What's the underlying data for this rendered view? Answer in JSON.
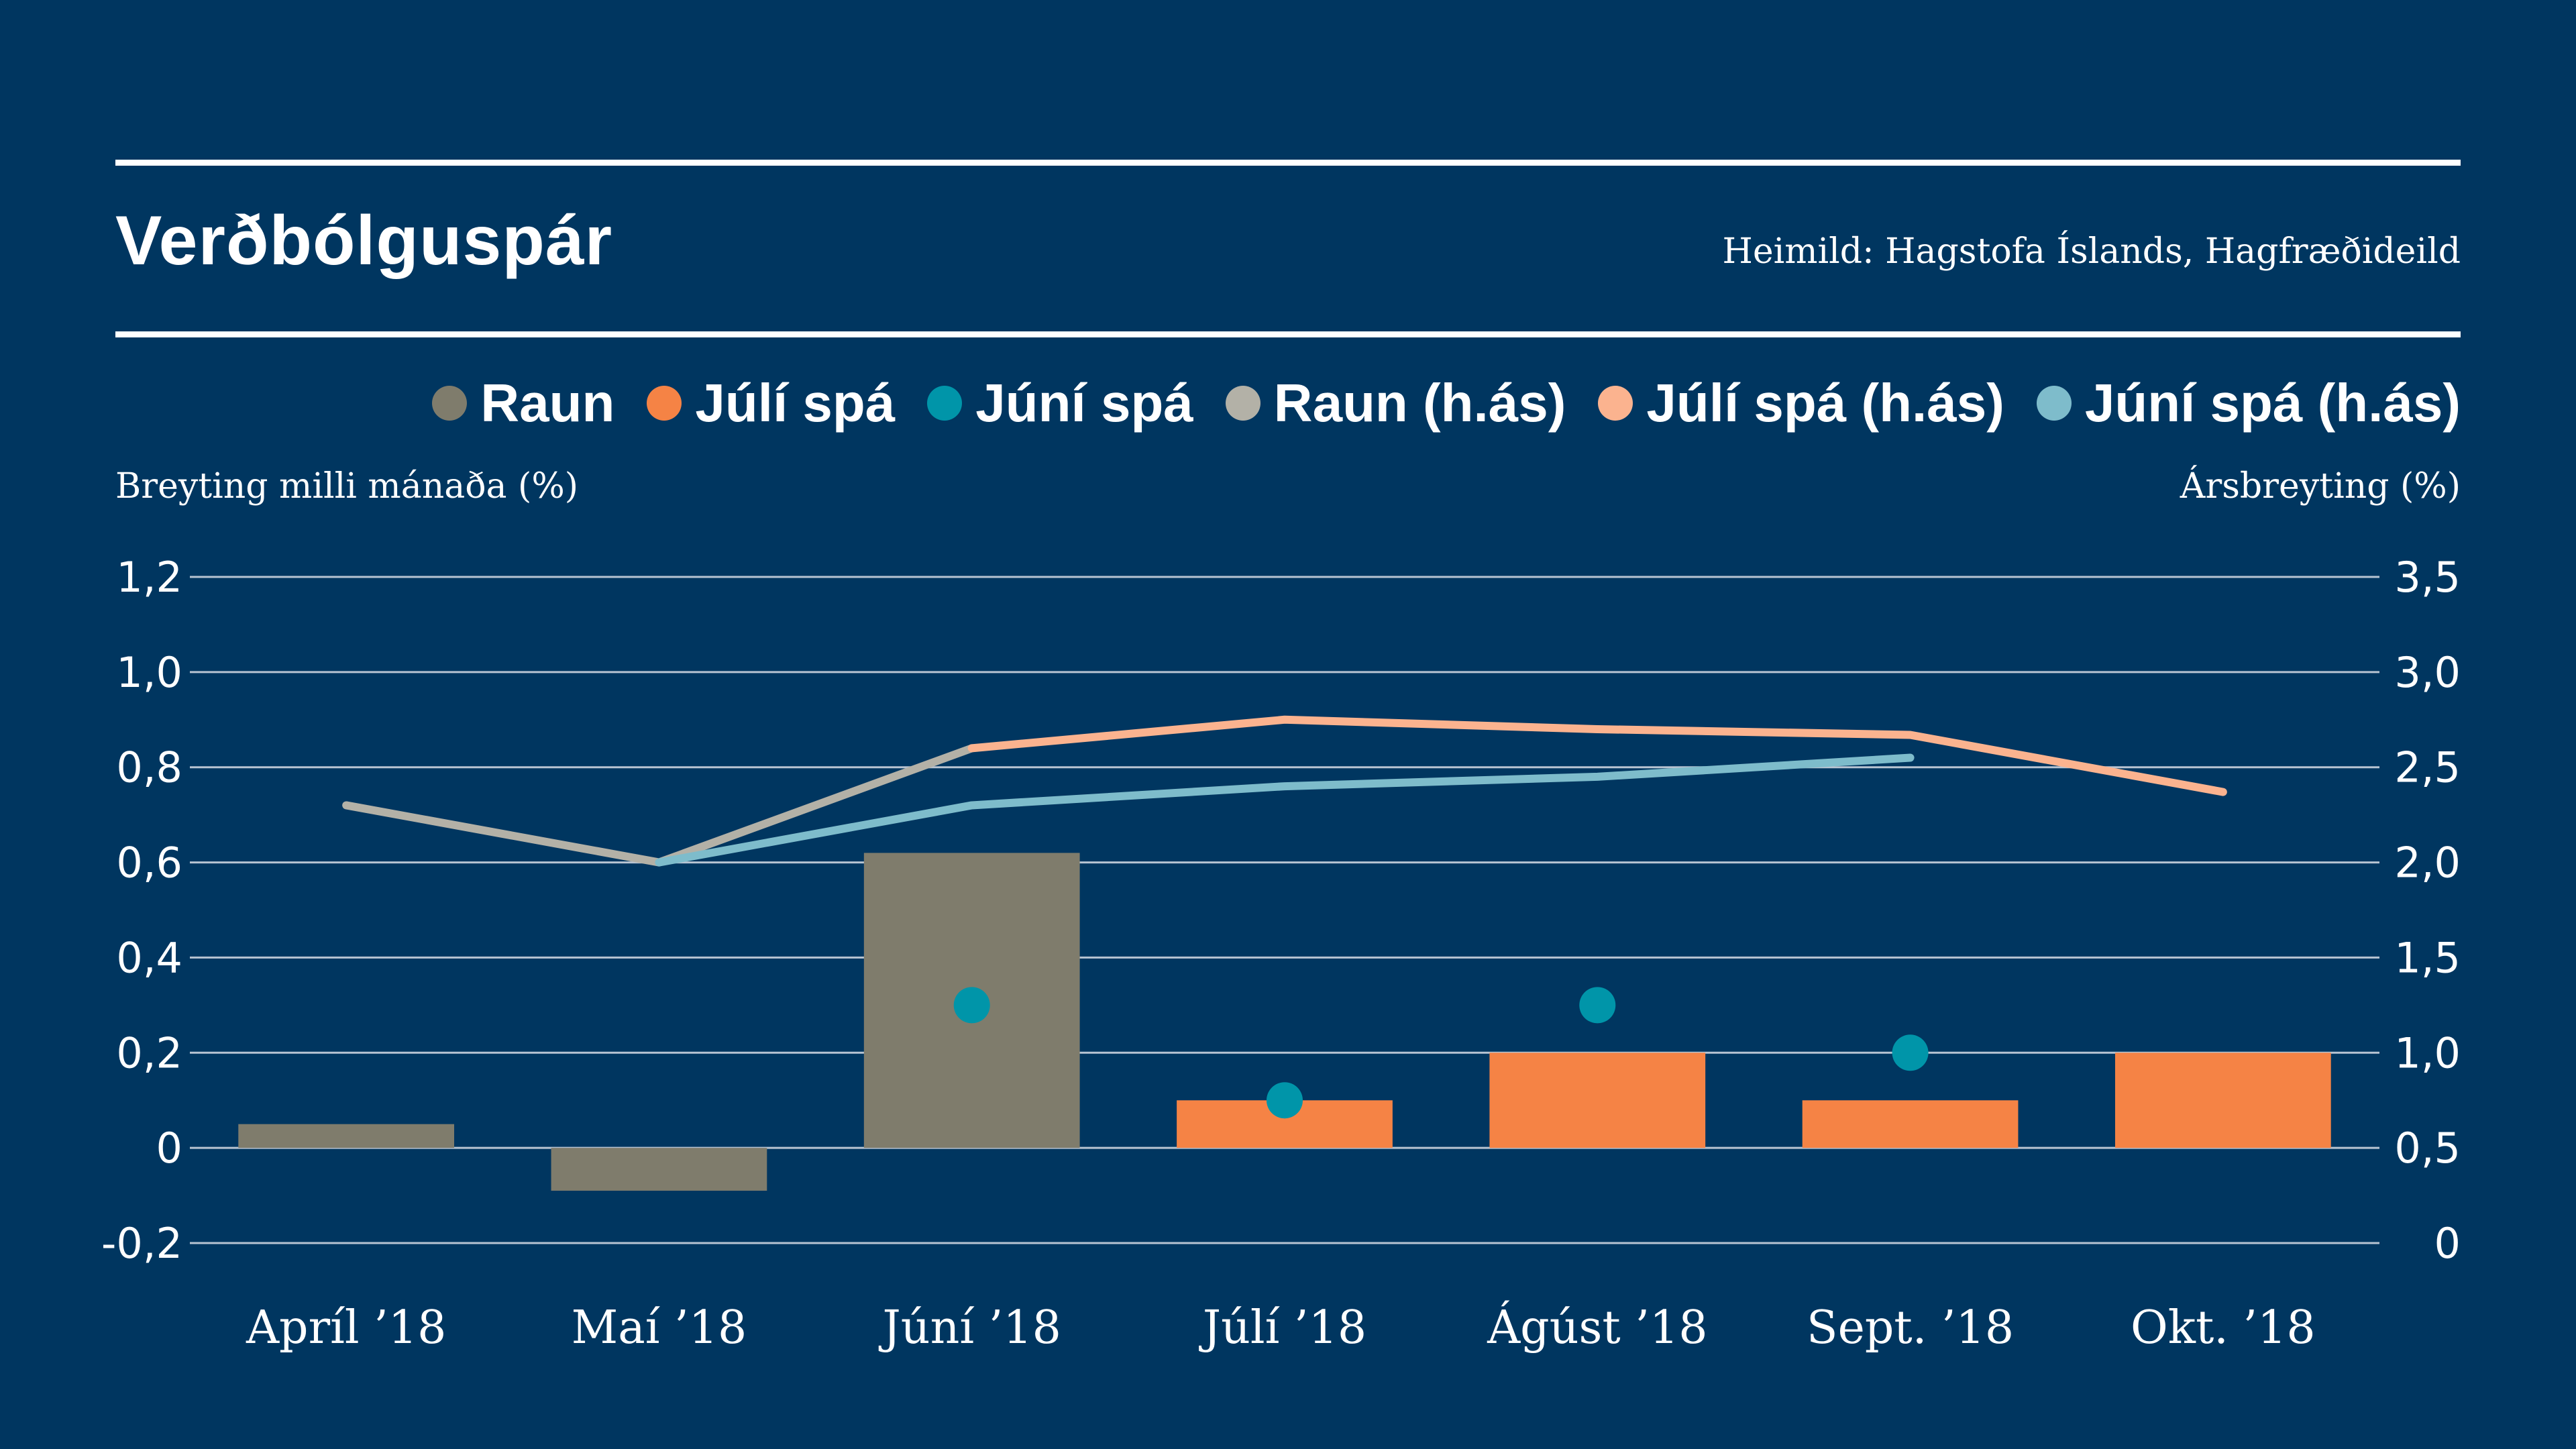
{
  "header": {
    "title": "Verðbólguspár",
    "source": "Heimild: Hagstofa Íslands, Hagfræðideild"
  },
  "legend": [
    {
      "label": "Raun",
      "color": "#7f7c6c"
    },
    {
      "label": "Júlí spá",
      "color": "#f58345"
    },
    {
      "label": "Júní spá",
      "color": "#0095a9"
    },
    {
      "label": "Raun (h.ás)",
      "color": "#b3b1a7"
    },
    {
      "label": "Júlí spá (h.ás)",
      "color": "#fbb38f"
    },
    {
      "label": "Júní spá (h.ás)",
      "color": "#7ebccb"
    }
  ],
  "axes": {
    "left_title": "Breyting milli mánaða (%)",
    "right_title": "Ársbreyting (%)",
    "left_ticks": [
      {
        "value": 1.2,
        "label": "1,2"
      },
      {
        "value": 1.0,
        "label": "1,0"
      },
      {
        "value": 0.8,
        "label": "0,8"
      },
      {
        "value": 0.6,
        "label": "0,6"
      },
      {
        "value": 0.4,
        "label": "0,4"
      },
      {
        "value": 0.2,
        "label": "0,2"
      },
      {
        "value": 0,
        "label": "0"
      },
      {
        "value": -0.2,
        "label": "-0,2"
      }
    ],
    "right_ticks": [
      {
        "value": 3.5,
        "label": "3,5"
      },
      {
        "value": 3.0,
        "label": "3,0"
      },
      {
        "value": 2.5,
        "label": "2,5"
      },
      {
        "value": 2.0,
        "label": "2,0"
      },
      {
        "value": 1.5,
        "label": "1,5"
      },
      {
        "value": 1.0,
        "label": "1,0"
      },
      {
        "value": 0.5,
        "label": "0,5"
      },
      {
        "value": 0,
        "label": "0"
      }
    ]
  },
  "chart_data": {
    "type": "bar",
    "title": "Verðbólguspár",
    "categories": [
      "Apríl ’18",
      "Maí ’18",
      "Júní ’18",
      "Júlí ’18",
      "Ágúst ’18",
      "Sept. ’18",
      "Okt. ’18"
    ],
    "ylim_left": [
      -0.2,
      1.2
    ],
    "ylim_right": [
      0,
      3.5
    ],
    "grid": true,
    "legend_position": "top-right",
    "series": [
      {
        "name": "Raun",
        "kind": "bar",
        "axis": "left",
        "color": "#7f7c6c",
        "values": [
          0.05,
          -0.09,
          0.62,
          null,
          null,
          null,
          null
        ]
      },
      {
        "name": "Júlí spá",
        "kind": "bar",
        "axis": "left",
        "color": "#f58345",
        "values": [
          null,
          null,
          null,
          0.1,
          0.2,
          0.1,
          0.2
        ]
      },
      {
        "name": "Júní spá",
        "kind": "dot",
        "axis": "left",
        "color": "#0095a9",
        "values": [
          null,
          null,
          0.3,
          0.1,
          0.3,
          0.2,
          null
        ]
      },
      {
        "name": "Raun (h.ás)",
        "kind": "line",
        "axis": "right",
        "color": "#b3b1a7",
        "values": [
          2.3,
          2.0,
          2.6,
          null,
          null,
          null,
          null
        ]
      },
      {
        "name": "Júlí spá (h.ás)",
        "kind": "line",
        "axis": "right",
        "color": "#fbb38f",
        "values": [
          null,
          null,
          2.6,
          2.75,
          2.7,
          2.67,
          2.37
        ]
      },
      {
        "name": "Júní spá (h.ás)",
        "kind": "line",
        "axis": "right",
        "color": "#7ebccb",
        "values": [
          null,
          2.0,
          2.3,
          2.4,
          2.45,
          2.55,
          null
        ]
      }
    ]
  }
}
